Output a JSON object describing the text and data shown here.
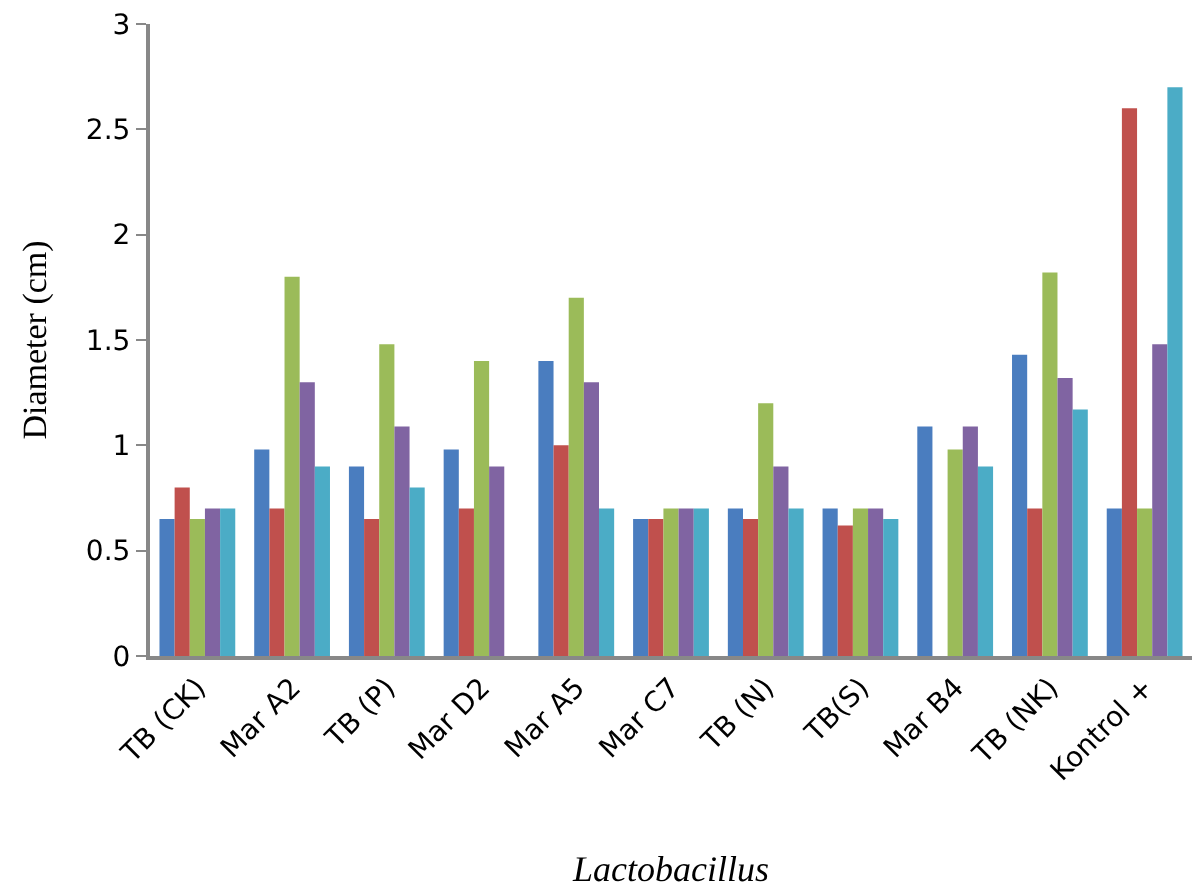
{
  "chart_data": {
    "type": "bar",
    "xlabel": "Lactobacillus",
    "ylabel": "Diameter (cm)",
    "categories": [
      "TB (CK)",
      "Mar A2",
      "TB (P)",
      "Mar D2",
      "Mar A5",
      "Mar C7",
      "TB (N)",
      "TB(S)",
      "Mar B4",
      "TB (NK)",
      "Kontrol +"
    ],
    "series": [
      {
        "color": "#4a7dbf",
        "values": [
          0.65,
          0.98,
          0.9,
          0.98,
          1.4,
          0.65,
          0.7,
          0.7,
          1.09,
          1.43,
          0.7
        ]
      },
      {
        "color": "#c0504d",
        "values": [
          0.8,
          0.7,
          0.65,
          0.7,
          1.0,
          0.65,
          0.65,
          0.62,
          null,
          0.7,
          2.6
        ]
      },
      {
        "color": "#9bbb59",
        "values": [
          0.65,
          1.8,
          1.48,
          1.4,
          1.7,
          0.7,
          1.2,
          0.7,
          0.98,
          1.82,
          0.7
        ]
      },
      {
        "color": "#8064a2",
        "values": [
          0.7,
          1.3,
          1.09,
          0.9,
          1.3,
          0.7,
          0.9,
          0.7,
          1.09,
          1.32,
          1.48
        ]
      },
      {
        "color": "#4bacc6",
        "values": [
          0.7,
          0.9,
          0.8,
          null,
          0.7,
          0.7,
          0.7,
          0.65,
          0.9,
          1.17,
          2.7
        ]
      }
    ],
    "ylim": [
      0,
      3
    ],
    "yticks": [
      0,
      0.5,
      1,
      1.5,
      2,
      2.5,
      3
    ]
  }
}
